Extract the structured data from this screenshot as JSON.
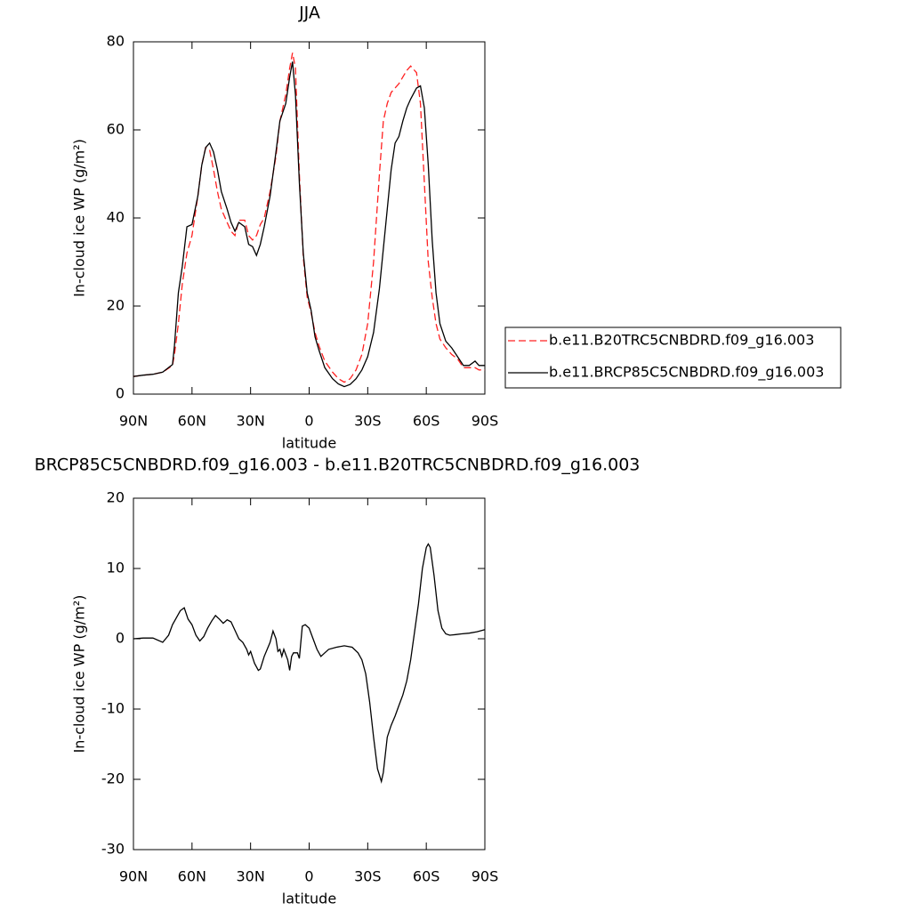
{
  "chart_data": [
    {
      "type": "line",
      "title": "JJA",
      "xlabel": "latitude",
      "ylabel": "In-cloud ice WP (g/m²)",
      "xlim": [
        90,
        -90
      ],
      "ylim": [
        0,
        80
      ],
      "xticks": [
        {
          "value": 90,
          "label": "90N"
        },
        {
          "value": 60,
          "label": "60N"
        },
        {
          "value": 30,
          "label": "30N"
        },
        0,
        {
          "value": -30,
          "label": "30S"
        },
        {
          "value": -60,
          "label": "60S"
        },
        {
          "value": -90,
          "label": "90S"
        }
      ],
      "yticks": [
        0,
        20,
        40,
        60,
        80
      ],
      "legend": "outside-right",
      "x": [
        90,
        85,
        80,
        75,
        70,
        69,
        67,
        65,
        62.6,
        60,
        57,
        55,
        53,
        51,
        49,
        47,
        45,
        42,
        40,
        38,
        36,
        33,
        31,
        29,
        27,
        25,
        23,
        20,
        17,
        15,
        12,
        10,
        8.5,
        7,
        5,
        3,
        1,
        -1,
        -3,
        -5,
        -8,
        -12,
        -15,
        -18,
        -21,
        -24,
        -27,
        -30,
        -33,
        -36,
        -38,
        -40,
        -42,
        -44,
        -46,
        -48,
        -50,
        -52,
        -55,
        -57,
        -59,
        -61,
        -63,
        -65,
        -67,
        -70,
        -73,
        -76,
        -79,
        -82,
        -85,
        -87,
        -90
      ],
      "series": [
        {
          "name": "b.e11.B20TRC5CNBDRD.f09_g16.003",
          "color": "#ff2020",
          "dashed": true,
          "values": [
            4,
            4.3,
            4.5,
            5,
            6.5,
            9,
            16,
            25,
            32,
            36,
            45,
            52,
            56,
            55.5,
            51,
            46,
            42,
            39,
            37,
            36,
            39.5,
            39.5,
            36,
            35,
            36,
            38.5,
            40,
            46,
            54,
            62,
            68,
            74,
            77.5,
            74,
            50,
            31,
            22,
            18.5,
            14,
            11,
            7.5,
            5,
            3.5,
            2.7,
            3.5,
            5.5,
            9,
            16,
            30,
            50,
            62,
            66,
            68.5,
            69.5,
            70.5,
            72,
            73.5,
            74.5,
            73,
            66,
            48,
            30,
            22,
            16,
            12.5,
            10.5,
            9,
            8,
            6,
            6,
            6,
            5.5,
            5.5
          ]
        },
        {
          "name": "b.e11.BRCP85C5CNBDRD.f09_g16.003",
          "color": "#000000",
          "dashed": false,
          "values": [
            4,
            4.3,
            4.5,
            5,
            6.7,
            11,
            23,
            29,
            38,
            38.5,
            45,
            52,
            56,
            57,
            55,
            51,
            46,
            42,
            39,
            37,
            39,
            38,
            34,
            33.5,
            31.5,
            34,
            38,
            45,
            55,
            62,
            66,
            72,
            75.5,
            68,
            48,
            32,
            23,
            19,
            13,
            10,
            6,
            3.5,
            2.3,
            1.7,
            2.2,
            3.5,
            5.5,
            8.5,
            14,
            24,
            33,
            42,
            51,
            57,
            58.5,
            62,
            65,
            67,
            69.5,
            70,
            65,
            52,
            35,
            23,
            16,
            12,
            10.5,
            8.5,
            6.5,
            6.5,
            7.5,
            6.5,
            6.5
          ]
        }
      ]
    },
    {
      "type": "line",
      "title": "BRCP85C5CNBDRD.f09_g16.003 - b.e11.B20TRC5CNBDRD.f09_g16.003",
      "xlabel": "latitude",
      "ylabel": "In-cloud ice WP (g/m²)",
      "xlim": [
        90,
        -90
      ],
      "ylim": [
        -30,
        20
      ],
      "xticks": [
        {
          "value": 90,
          "label": "90N"
        },
        {
          "value": 60,
          "label": "60N"
        },
        {
          "value": 30,
          "label": "30N"
        },
        0,
        {
          "value": -30,
          "label": "30S"
        },
        {
          "value": -60,
          "label": "60S"
        },
        {
          "value": -90,
          "label": "90S"
        }
      ],
      "yticks": [
        -30,
        -20,
        -10,
        0,
        10,
        20
      ],
      "x": [
        90,
        85,
        80,
        75,
        72,
        70,
        68,
        66,
        64,
        62,
        60,
        58,
        56,
        54,
        52,
        50,
        48,
        46,
        44,
        42,
        40,
        38,
        36,
        34,
        32,
        31,
        30,
        28,
        26,
        25,
        23,
        20,
        18.5,
        17,
        16,
        15,
        14,
        13,
        11,
        10,
        9,
        8,
        6,
        5,
        3.5,
        2,
        0,
        -2,
        -4,
        -6,
        -8,
        -10,
        -14,
        -18,
        -22,
        -25,
        -27,
        -29,
        -31,
        -33,
        -35,
        -37,
        -38,
        -40,
        -42,
        -44,
        -46,
        -48,
        -50,
        -52,
        -54,
        -56,
        -58,
        -60,
        -61,
        -62,
        -64,
        -66,
        -68,
        -70,
        -72,
        -75,
        -78,
        -82,
        -86,
        -90
      ],
      "values": [
        0,
        0.1,
        0.1,
        -0.5,
        0.5,
        2,
        3,
        4,
        4.4,
        2.8,
        2,
        0.5,
        -0.3,
        0.3,
        1.5,
        2.5,
        3.3,
        2.8,
        2.2,
        2.7,
        2.4,
        1.2,
        0,
        -0.5,
        -1.5,
        -2.3,
        -1.8,
        -3.5,
        -4.5,
        -4.3,
        -2.5,
        -0.5,
        1.1,
        0,
        -1.8,
        -1.5,
        -2.5,
        -1.5,
        -3,
        -4.5,
        -2.5,
        -2,
        -2,
        -2.8,
        1.8,
        2,
        1.5,
        0,
        -1.5,
        -2.5,
        -2,
        -1.5,
        -1.2,
        -1,
        -1.2,
        -2,
        -3,
        -5,
        -9,
        -14,
        -18.5,
        -20.3,
        -19,
        -14,
        -12.3,
        -11,
        -9.5,
        -8,
        -6,
        -3,
        1,
        5,
        10,
        13,
        13.5,
        13,
        9,
        4,
        1.5,
        0.7,
        0.5,
        0.6,
        0.7,
        0.8,
        1,
        1.3
      ],
      "color": "#000000"
    }
  ]
}
